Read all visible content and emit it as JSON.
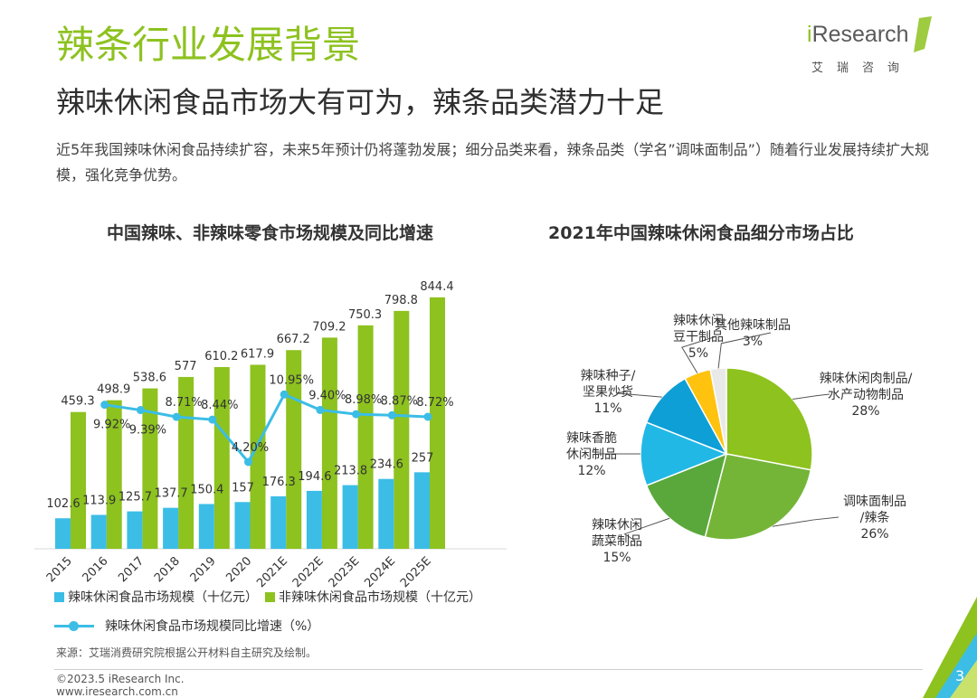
{
  "header": {
    "title": "辣条行业发展背景",
    "subtitle": "辣味休闲食品市场大有可为，辣条品类潜力十足",
    "intro": "近5年我国辣味休闲食品持续扩容，未来5年预计仍将蓬勃发展；细分品类来看，辣条品类（学名”调味面制品”）随着行业发展持续扩大规模，强化竞争优势。"
  },
  "logo": {
    "i": "i",
    "word": "Research",
    "cn": "艾瑞咨询"
  },
  "colors": {
    "accent": "#8dc21f",
    "spicy": "#3bbde6",
    "nonspicy": "#8dc21f",
    "growth": "#3bbde6"
  },
  "chart_data": [
    {
      "type": "bar",
      "title": "中国辣味、非辣味零食市场规模及同比增速",
      "categories": [
        "2015",
        "2016",
        "2017",
        "2018",
        "2019",
        "2020",
        "2021E",
        "2022E",
        "2023E",
        "2024E",
        "2025E"
      ],
      "series": [
        {
          "name": "辣味休闲食品市场规模（十亿元）",
          "type": "bar",
          "values": [
            102.6,
            113.9,
            125.7,
            137.7,
            150.4,
            157,
            176.3,
            194.6,
            213.8,
            234.6,
            257
          ]
        },
        {
          "name": "非辣味休闲食品市场规模（十亿元）",
          "type": "bar",
          "values": [
            459.3,
            498.9,
            538.6,
            577,
            610.2,
            617.9,
            667.2,
            709.2,
            750.3,
            798.8,
            844.4
          ]
        },
        {
          "name": "辣味休闲食品市场规模同比增速（%）",
          "type": "line",
          "values": [
            null,
            9.92,
            9.39,
            8.71,
            8.44,
            4.2,
            10.95,
            9.4,
            8.98,
            8.87,
            8.72
          ]
        }
      ],
      "growth_labels": [
        "",
        "9.92%",
        "9.39%",
        "8.71%",
        "8.44%",
        "4.20%",
        "10.95%",
        "9.40%",
        "8.98%",
        "8.87%",
        "8.72%"
      ],
      "ylim": [
        0,
        900
      ]
    },
    {
      "type": "pie",
      "title": "2021年中国辣味休闲食品细分市场占比",
      "slices": [
        {
          "name": "辣味休闲肉制品/水产动物制品",
          "label": [
            "辣味休闲肉制品/",
            "水产动物制品"
          ],
          "value": 28,
          "pct": "28%",
          "color": "#8dc21f"
        },
        {
          "name": "调味面制品/辣条",
          "label": [
            "调味面制品",
            "/辣条"
          ],
          "value": 26,
          "pct": "26%",
          "color": "#74b538"
        },
        {
          "name": "辣味休闲蔬菜制品",
          "label": [
            "辣味休闲",
            "蔬菜制品"
          ],
          "value": 15,
          "pct": "15%",
          "color": "#5aa83c"
        },
        {
          "name": "辣味香脆休闲制品",
          "label": [
            "辣味香脆",
            "休闲制品"
          ],
          "value": 12,
          "pct": "12%",
          "color": "#21b8e6"
        },
        {
          "name": "辣味种子/坚果炒货",
          "label": [
            "辣味种子/",
            "坚果炒货"
          ],
          "value": 11,
          "pct": "11%",
          "color": "#0e9fd6"
        },
        {
          "name": "辣味休闲豆干制品",
          "label": [
            "辣味休闲",
            "豆干制品"
          ],
          "value": 5,
          "pct": "5%",
          "color": "#ffc20e"
        },
        {
          "name": "其他辣味制品",
          "label": [
            "其他辣味制品"
          ],
          "value": 3,
          "pct": "3%",
          "color": "#e9e9e9"
        }
      ]
    }
  ],
  "legend": {
    "spicy": "辣味休闲食品市场规模（十亿元）",
    "nonspicy": "非辣味休闲食品市场规模（十亿元）",
    "growth": "辣味休闲食品市场规模同比增速（%）"
  },
  "footer": {
    "source": "来源：艾瑞消费研究院根据公开材料自主研究及绘制。",
    "copyright": "©2023.5 iResearch Inc.",
    "website": "www.iresearch.com.cn",
    "page": "3"
  }
}
